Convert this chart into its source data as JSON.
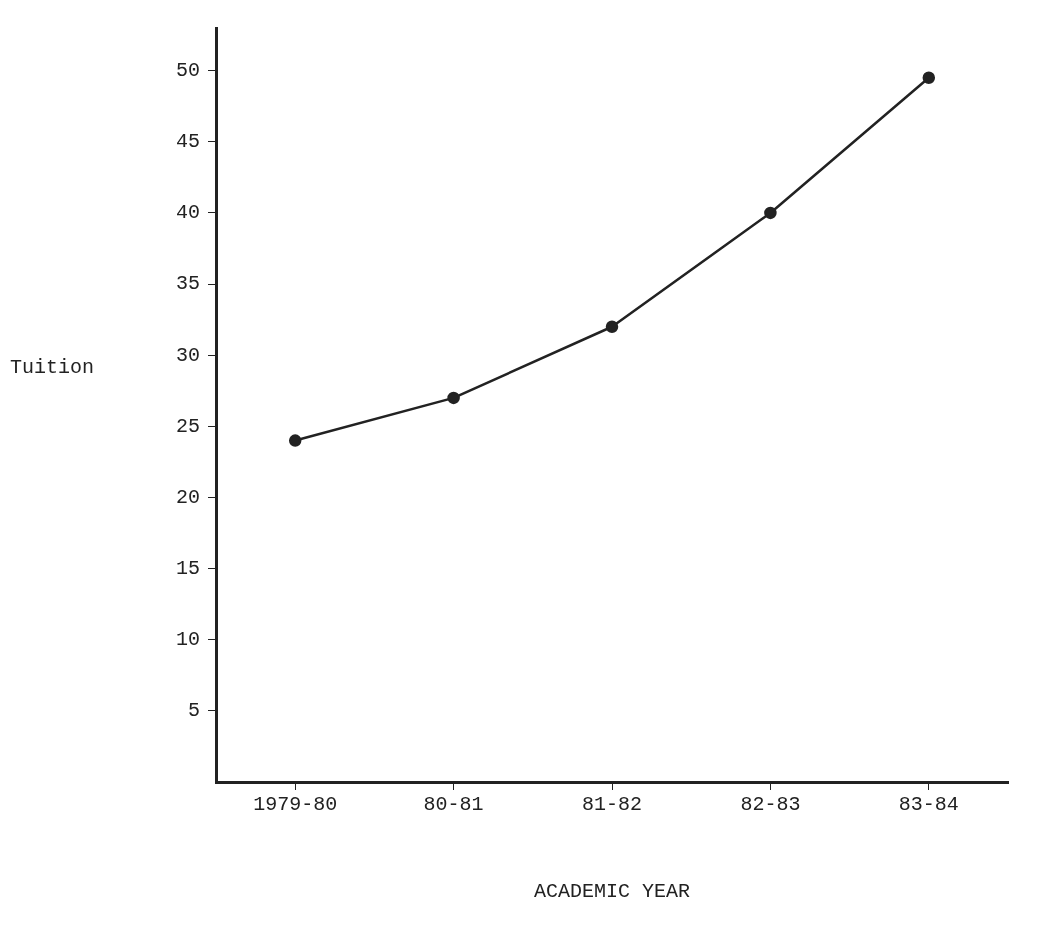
{
  "chart_data": {
    "type": "line",
    "xlabel": "ACADEMIC YEAR",
    "ylabel": "Tuition",
    "categories": [
      "1979-80",
      "80-81",
      "81-82",
      "82-83",
      "83-84"
    ],
    "series": [
      {
        "color": "#222222",
        "values": [
          24,
          27,
          32,
          40,
          49.5
        ]
      }
    ],
    "ylim": [
      0,
      53
    ],
    "yticks": [
      5,
      10,
      15,
      20,
      25,
      30,
      35,
      40,
      45,
      50
    ],
    "grid": false,
    "legend": false,
    "marker": "circle",
    "line_style": "solid"
  }
}
